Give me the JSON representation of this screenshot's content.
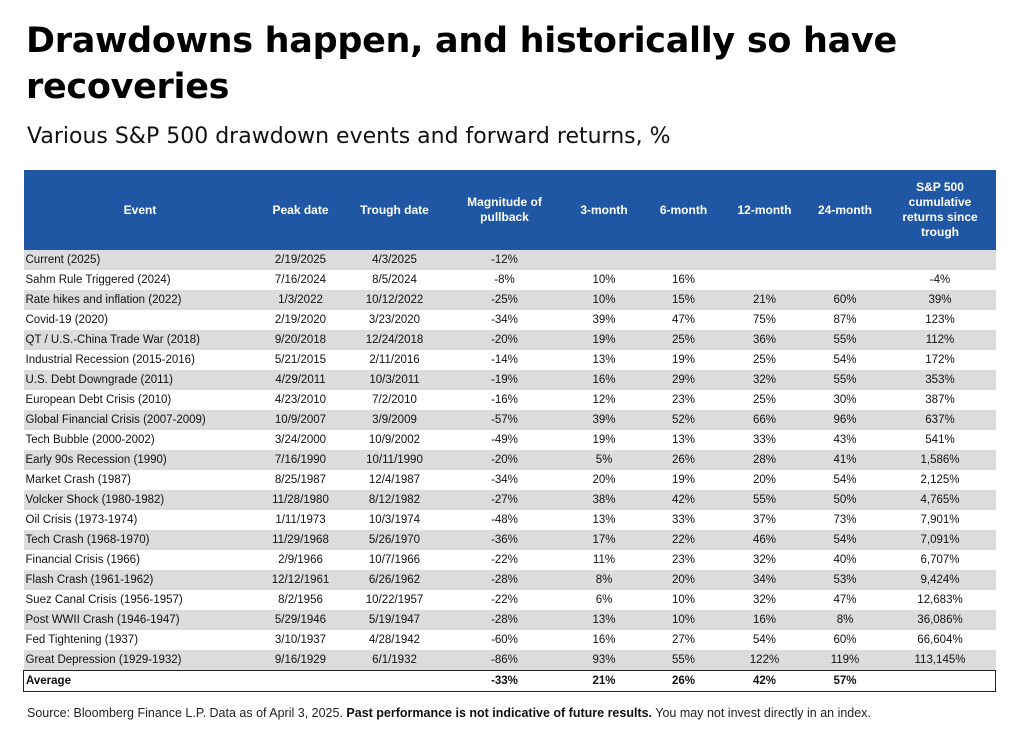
{
  "title": "Drawdowns happen, and historically so have recoveries",
  "subtitle": "Various S&P 500 drawdown events and forward returns, %",
  "colors": {
    "header_bg": "#1f57a4",
    "stripe": "#dcdcdc"
  },
  "chart_data": {
    "type": "table",
    "columns": [
      "Event",
      "Peak date",
      "Trough date",
      "Magnitude of pullback",
      "3-month",
      "6-month",
      "12-month",
      "24-month",
      "S&P 500 cumulative returns since trough"
    ],
    "rows": [
      [
        "Current (2025)",
        "2/19/2025",
        "4/3/2025",
        "-12%",
        "",
        "",
        "",
        "",
        ""
      ],
      [
        "Sahm Rule Triggered (2024)",
        "7/16/2024",
        "8/5/2024",
        "-8%",
        "10%",
        "16%",
        "",
        "",
        "-4%"
      ],
      [
        "Rate hikes and inflation (2022)",
        "1/3/2022",
        "10/12/2022",
        "-25%",
        "10%",
        "15%",
        "21%",
        "60%",
        "39%"
      ],
      [
        "Covid-19 (2020)",
        "2/19/2020",
        "3/23/2020",
        "-34%",
        "39%",
        "47%",
        "75%",
        "87%",
        "123%"
      ],
      [
        "QT / U.S.-China Trade War (2018)",
        "9/20/2018",
        "12/24/2018",
        "-20%",
        "19%",
        "25%",
        "36%",
        "55%",
        "112%"
      ],
      [
        "Industrial Recession (2015-2016)",
        "5/21/2015",
        "2/11/2016",
        "-14%",
        "13%",
        "19%",
        "25%",
        "54%",
        "172%"
      ],
      [
        "U.S. Debt Downgrade (2011)",
        "4/29/2011",
        "10/3/2011",
        "-19%",
        "16%",
        "29%",
        "32%",
        "55%",
        "353%"
      ],
      [
        "European Debt Crisis (2010)",
        "4/23/2010",
        "7/2/2010",
        "-16%",
        "12%",
        "23%",
        "25%",
        "30%",
        "387%"
      ],
      [
        "Global Financial Crisis (2007-2009)",
        "10/9/2007",
        "3/9/2009",
        "-57%",
        "39%",
        "52%",
        "66%",
        "96%",
        "637%"
      ],
      [
        "Tech Bubble (2000-2002)",
        "3/24/2000",
        "10/9/2002",
        "-49%",
        "19%",
        "13%",
        "33%",
        "43%",
        "541%"
      ],
      [
        "Early 90s Recession (1990)",
        "7/16/1990",
        "10/11/1990",
        "-20%",
        "5%",
        "26%",
        "28%",
        "41%",
        "1,586%"
      ],
      [
        "Market Crash (1987)",
        "8/25/1987",
        "12/4/1987",
        "-34%",
        "20%",
        "19%",
        "20%",
        "54%",
        "2,125%"
      ],
      [
        "Volcker Shock (1980-1982)",
        "11/28/1980",
        "8/12/1982",
        "-27%",
        "38%",
        "42%",
        "55%",
        "50%",
        "4,765%"
      ],
      [
        "Oil Crisis (1973-1974)",
        "1/11/1973",
        "10/3/1974",
        "-48%",
        "13%",
        "33%",
        "37%",
        "73%",
        "7,901%"
      ],
      [
        "Tech Crash (1968-1970)",
        "11/29/1968",
        "5/26/1970",
        "-36%",
        "17%",
        "22%",
        "46%",
        "54%",
        "7,091%"
      ],
      [
        "Financial Crisis (1966)",
        "2/9/1966",
        "10/7/1966",
        "-22%",
        "11%",
        "23%",
        "32%",
        "40%",
        "6,707%"
      ],
      [
        "Flash Crash (1961-1962)",
        "12/12/1961",
        "6/26/1962",
        "-28%",
        "8%",
        "20%",
        "34%",
        "53%",
        "9,424%"
      ],
      [
        "Suez Canal Crisis (1956-1957)",
        "8/2/1956",
        "10/22/1957",
        "-22%",
        "6%",
        "10%",
        "32%",
        "47%",
        "12,683%"
      ],
      [
        "Post WWII Crash (1946-1947)",
        "5/29/1946",
        "5/19/1947",
        "-28%",
        "13%",
        "10%",
        "16%",
        "8%",
        "36,086%"
      ],
      [
        "Fed Tightening (1937)",
        "3/10/1937",
        "4/28/1942",
        "-60%",
        "16%",
        "27%",
        "54%",
        "60%",
        "66,604%"
      ],
      [
        "Great Depression (1929-1932)",
        "9/16/1929",
        "6/1/1932",
        "-86%",
        "93%",
        "55%",
        "122%",
        "119%",
        "113,145%"
      ]
    ],
    "average": [
      "Average",
      "",
      "",
      "-33%",
      "21%",
      "26%",
      "42%",
      "57%",
      ""
    ]
  },
  "source": {
    "prefix": "Source: Bloomberg Finance L.P. Data as of April 3, 2025. ",
    "bold": "Past performance is not indicative of future results.",
    "suffix": " You may not invest directly in an index."
  }
}
